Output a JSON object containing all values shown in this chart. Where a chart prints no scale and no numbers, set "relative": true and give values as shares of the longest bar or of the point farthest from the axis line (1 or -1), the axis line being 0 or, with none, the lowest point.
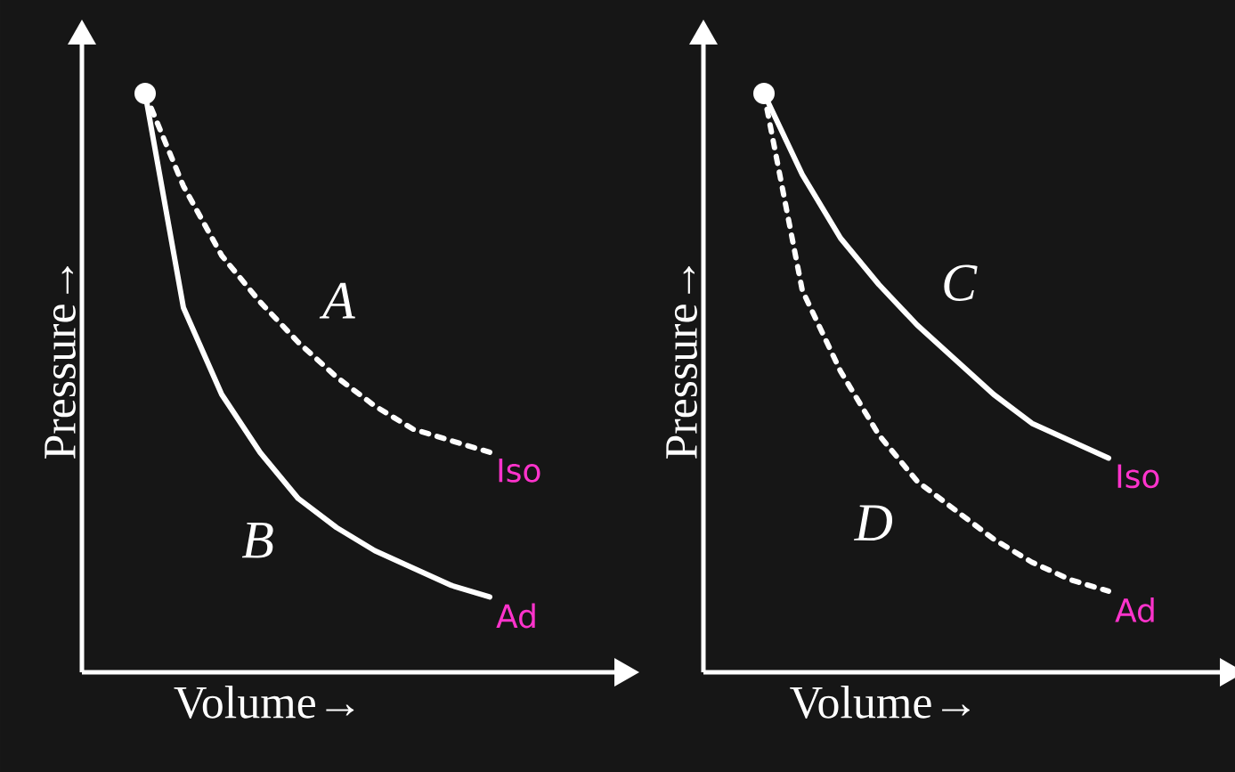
{
  "chart_data": [
    {
      "type": "line",
      "xlabel": "Volume→",
      "ylabel": "Pressure→",
      "relative": true,
      "categories": [
        null,
        null,
        null,
        null,
        null,
        null,
        null,
        null,
        null,
        null
      ],
      "series": [
        {
          "name": "A",
          "color": "#ffffff",
          "line_style": "dashed",
          "values": [
            1,
            0.84,
            0.72,
            0.64,
            0.57,
            0.51,
            0.46,
            0.42,
            0.4,
            0.38
          ]
        },
        {
          "name": "B",
          "color": "#ffffff",
          "line_style": "solid",
          "values": [
            1,
            0.63,
            0.48,
            0.38,
            0.3,
            0.25,
            0.21,
            0.18,
            0.15,
            0.13
          ]
        }
      ],
      "annotations": [
        "Iso",
        "Ad"
      ]
    },
    {
      "type": "line",
      "xlabel": "Volume→",
      "ylabel": "Pressure→",
      "relative": true,
      "categories": [
        null,
        null,
        null,
        null,
        null,
        null,
        null,
        null,
        null,
        null
      ],
      "series": [
        {
          "name": "C",
          "color": "#ffffff",
          "line_style": "solid",
          "values": [
            1,
            0.86,
            0.75,
            0.67,
            0.6,
            0.54,
            0.48,
            0.43,
            0.4,
            0.37
          ]
        },
        {
          "name": "D",
          "color": "#ffffff",
          "line_style": "dashed",
          "values": [
            1,
            0.66,
            0.52,
            0.41,
            0.33,
            0.28,
            0.23,
            0.19,
            0.16,
            0.14
          ]
        }
      ],
      "annotations": [
        "Iso",
        "Ad"
      ]
    }
  ]
}
